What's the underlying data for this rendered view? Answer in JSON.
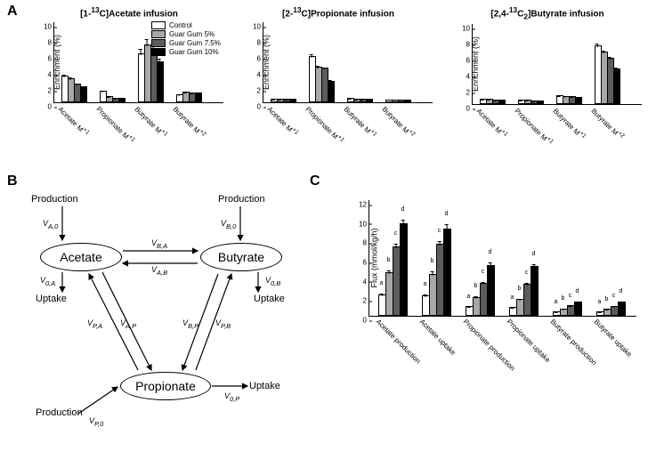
{
  "colors": {
    "groups": [
      "#ffffff",
      "#a8a8a8",
      "#5c5c5c",
      "#000000"
    ],
    "border": "#000000"
  },
  "legend": [
    "Control",
    "Guar Gum 5%",
    "Guar Gum 7.5%",
    "Guar Gum 10%"
  ],
  "panelA": {
    "label": "A",
    "charts": [
      {
        "title_plain": "[1-",
        "title_iso": "13",
        "title_rest": "C]Acetate infusion",
        "ymax": 10,
        "ystep": 2,
        "ylabel": "Enrichment (%)",
        "categories": [
          "Acetate M+1",
          "Propionate M+1",
          "Butyrate M+1",
          "Butyrate M+2"
        ],
        "series": [
          [
            3.2,
            2.8,
            2.2,
            1.8
          ],
          [
            1.3,
            0.6,
            0.4,
            0.4
          ],
          [
            5.9,
            7.0,
            6.4,
            4.9
          ],
          [
            0.8,
            1.1,
            1.0,
            1.0
          ]
        ],
        "err": [
          [
            0.3,
            0.3,
            0.2,
            0.2
          ],
          [
            0.2,
            0.15,
            0.1,
            0.1
          ],
          [
            0.8,
            0.9,
            0.7,
            0.6
          ],
          [
            0.2,
            0.2,
            0.2,
            0.2
          ]
        ]
      },
      {
        "title_plain": "[2-",
        "title_iso": "13",
        "title_rest": "C]Propionate infusion",
        "ymax": 10,
        "ystep": 2,
        "ylabel": "Enrichment (%)",
        "categories": [
          "Acetate M+1",
          "Propionate M+1",
          "Butyrate M+1",
          "Butyrate M+2"
        ],
        "series": [
          [
            0.3,
            0.3,
            0.3,
            0.25
          ],
          [
            5.6,
            4.3,
            4.1,
            2.5
          ],
          [
            0.35,
            0.3,
            0.3,
            0.25
          ],
          [
            0.1,
            0.1,
            0.1,
            0.1
          ]
        ],
        "err": [
          [
            0.1,
            0.1,
            0.1,
            0.1
          ],
          [
            0.4,
            0.3,
            0.3,
            0.3
          ],
          [
            0.1,
            0.1,
            0.1,
            0.1
          ],
          [
            0.05,
            0.05,
            0.05,
            0.05
          ]
        ]
      },
      {
        "title_plain": "[2,4-",
        "title_iso": "13",
        "title_rest": "C2]Butyrate infusion",
        "ymax": 10,
        "ystep": 2,
        "ylabel": "Enrichment (%)",
        "categories": [
          "Acetate M+1",
          "Propionate M+1",
          "Butyrate M+1",
          "Butyrate M+2"
        ],
        "series": [
          [
            0.5,
            0.45,
            0.4,
            0.35
          ],
          [
            0.4,
            0.35,
            0.3,
            0.25
          ],
          [
            0.9,
            0.85,
            0.8,
            0.7
          ],
          [
            7.2,
            6.4,
            5.6,
            4.3
          ]
        ],
        "err": [
          [
            0.1,
            0.1,
            0.1,
            0.1
          ],
          [
            0.1,
            0.1,
            0.1,
            0.1
          ],
          [
            0.15,
            0.15,
            0.15,
            0.15
          ],
          [
            0.4,
            0.35,
            0.35,
            0.3
          ]
        ]
      }
    ]
  },
  "panelB": {
    "label": "B",
    "nodes": {
      "acetate": "Acetate",
      "butyrate": "Butyrate",
      "propionate": "Propionate"
    },
    "edgeLabels": {
      "VA0": "V",
      "VA0s": "A,0",
      "V0A": "V",
      "V0As": "0,A",
      "VB0": "V",
      "VB0s": "B,0",
      "V0B": "V",
      "V0Bs": "0,B",
      "VBA": "V",
      "VBAs": "B,A",
      "VAB": "V",
      "VABs": "A,B",
      "VPA": "V",
      "VPAs": "P,A",
      "VAP": "V",
      "VAPs": "A,P",
      "VBP": "V",
      "VBPs": "B,P",
      "VPB": "V",
      "VPBs": "P,B",
      "VP0": "V",
      "VP0s": "P,0",
      "V0P": "V",
      "V0Ps": "0,P"
    },
    "plain": {
      "production": "Production",
      "uptake": "Uptake"
    }
  },
  "panelC": {
    "label": "C",
    "ylabel": "Flux (mmol/kg/h)",
    "ymax": 12,
    "ystep": 2,
    "categories": [
      "Acetate production",
      "Acetate uptake",
      "Propionate production",
      "Propionate uptake",
      "Butyrate production",
      "Butyrate uptake"
    ],
    "series": [
      [
        2.0,
        4.3,
        7.0,
        9.4
      ],
      [
        1.9,
        4.2,
        7.3,
        8.9
      ],
      [
        0.8,
        1.8,
        3.2,
        5.1
      ],
      [
        0.7,
        1.6,
        3.1,
        5.0
      ],
      [
        0.3,
        0.6,
        0.9,
        1.3
      ],
      [
        0.25,
        0.55,
        0.85,
        1.25
      ]
    ],
    "err": [
      [
        0.3,
        0.4,
        0.5,
        0.6
      ],
      [
        0.3,
        0.4,
        0.5,
        0.6
      ],
      [
        0.15,
        0.2,
        0.3,
        0.4
      ],
      [
        0.15,
        0.2,
        0.3,
        0.4
      ],
      [
        0.1,
        0.1,
        0.15,
        0.2
      ],
      [
        0.1,
        0.1,
        0.15,
        0.2
      ]
    ],
    "sig": [
      [
        "a",
        "b",
        "c",
        "d"
      ],
      [
        "a",
        "b",
        "c",
        "d"
      ],
      [
        "a",
        "b",
        "c",
        "d"
      ],
      [
        "a",
        "b",
        "c",
        "d"
      ],
      [
        "a",
        "b",
        "c",
        "d"
      ],
      [
        "a",
        "b",
        "c",
        "d"
      ]
    ]
  }
}
